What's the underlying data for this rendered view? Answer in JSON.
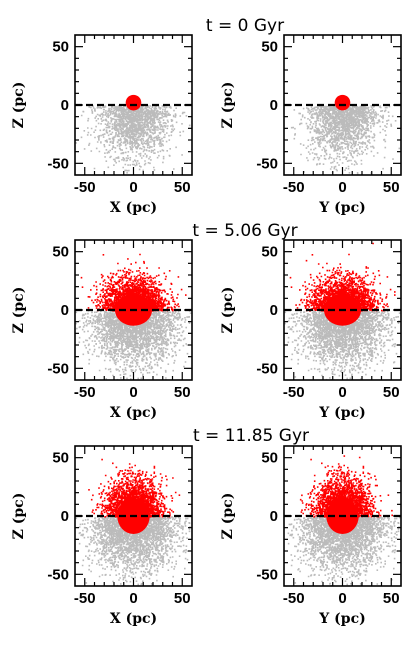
{
  "chart_data": [
    {
      "type": "scatter",
      "title": "t = 0 Gyr",
      "xlabel": "X  (pc)",
      "ylabel": "Z  (pc)",
      "xlim": [
        -60,
        60
      ],
      "ylim": [
        -60,
        60
      ],
      "xticks": [
        "-50",
        "0",
        "50"
      ],
      "yticks": [
        "50",
        "0",
        "-50"
      ],
      "series": [
        {
          "color": "#bbbbbb",
          "x_range": [
            -45,
            45
          ],
          "z_range": [
            -55,
            0
          ],
          "shape": "half-disk below plane"
        },
        {
          "color": "#ff0000",
          "x": 0,
          "z": 2,
          "radius": 4
        }
      ],
      "reference_line": {
        "z": 0,
        "style": "dashed"
      }
    },
    {
      "type": "scatter",
      "title": "",
      "xlabel": "Y  (pc)",
      "ylabel": "Z  (pc)",
      "xlim": [
        -60,
        60
      ],
      "ylim": [
        -60,
        60
      ],
      "xticks": [
        "-50",
        "0",
        "50"
      ],
      "yticks": [
        "50",
        "0",
        "-50"
      ],
      "series": [
        {
          "color": "#bbbbbb",
          "x_range": [
            -45,
            45
          ],
          "z_range": [
            -55,
            0
          ],
          "shape": "half-disk below plane"
        },
        {
          "color": "#ff0000",
          "x": 0,
          "z": 2,
          "radius": 4
        }
      ],
      "reference_line": {
        "z": 0,
        "style": "dashed"
      }
    },
    {
      "type": "scatter",
      "title": "t = 5.06 Gyr",
      "xlabel": "X  (pc)",
      "ylabel": "Z  (pc)",
      "xlim": [
        -60,
        60
      ],
      "ylim": [
        -60,
        60
      ],
      "xticks": [
        "-50",
        "0",
        "50"
      ],
      "yticks": [
        "50",
        "0",
        "-50"
      ],
      "series": [
        {
          "color": "#bbbbbb",
          "x_range": [
            -55,
            55
          ],
          "z_range": [
            -55,
            0
          ],
          "shape": "half-disk below plane"
        },
        {
          "color": "#ff0000",
          "x_range": [
            -40,
            40
          ],
          "z_range": [
            0,
            35
          ],
          "shape": "half-disk above plane"
        }
      ],
      "reference_line": {
        "z": 0,
        "style": "dashed"
      }
    },
    {
      "type": "scatter",
      "title": "",
      "xlabel": "Y  (pc)",
      "ylabel": "Z  (pc)",
      "xlim": [
        -60,
        60
      ],
      "ylim": [
        -60,
        60
      ],
      "xticks": [
        "-50",
        "0",
        "50"
      ],
      "yticks": [
        "50",
        "0",
        "-50"
      ],
      "series": [
        {
          "color": "#bbbbbb",
          "x_range": [
            -55,
            55
          ],
          "z_range": [
            -55,
            0
          ],
          "shape": "half-disk below plane"
        },
        {
          "color": "#ff0000",
          "x_range": [
            -40,
            40
          ],
          "z_range": [
            0,
            35
          ],
          "shape": "half-disk above plane"
        }
      ],
      "reference_line": {
        "z": 0,
        "style": "dashed"
      }
    },
    {
      "type": "scatter",
      "title": "t = 11.85 Gyr",
      "xlabel": "X  (pc)",
      "ylabel": "Z  (pc)",
      "xlim": [
        -60,
        60
      ],
      "ylim": [
        -60,
        60
      ],
      "xticks": [
        "-50",
        "0",
        "50"
      ],
      "yticks": [
        "50",
        "0",
        "-50"
      ],
      "series": [
        {
          "color": "#bbbbbb",
          "x_range": [
            -55,
            55
          ],
          "z_range": [
            -55,
            0
          ],
          "shape": "half-disk below plane"
        },
        {
          "color": "#ff0000",
          "x_range": [
            -35,
            35
          ],
          "z_range": [
            0,
            40
          ],
          "shape": "half-disk above plane"
        }
      ],
      "reference_line": {
        "z": 0,
        "style": "dashed"
      }
    },
    {
      "type": "scatter",
      "title": "",
      "xlabel": "Y  (pc)",
      "ylabel": "Z  (pc)",
      "xlim": [
        -60,
        60
      ],
      "ylim": [
        -60,
        60
      ],
      "xticks": [
        "-50",
        "0",
        "50"
      ],
      "yticks": [
        "50",
        "0",
        "-50"
      ],
      "series": [
        {
          "color": "#bbbbbb",
          "x_range": [
            -55,
            55
          ],
          "z_range": [
            -55,
            0
          ],
          "shape": "half-disk below plane"
        },
        {
          "color": "#ff0000",
          "x_range": [
            -35,
            35
          ],
          "z_range": [
            0,
            40
          ],
          "shape": "half-disk above plane"
        }
      ],
      "reference_line": {
        "z": 0,
        "style": "dashed"
      }
    }
  ]
}
